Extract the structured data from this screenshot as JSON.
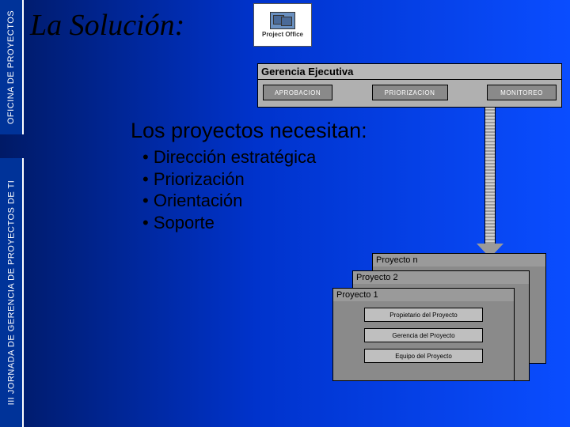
{
  "sidebar": {
    "top": "OFICINA DE PROYECTOS",
    "bottom": "III JORNADA DE GERENCIA DE PROYECTOS DE TI"
  },
  "title": "La Solución:",
  "logo": {
    "line1": "Project Office"
  },
  "exec": {
    "heading": "Gerencia Ejecutiva",
    "items": [
      "APROBACION",
      "PRIORIZACION",
      "MONITOREO"
    ]
  },
  "headline": "Los proyectos necesitan:",
  "bullets": [
    "Dirección estratégica",
    "Priorización",
    "Orientación",
    "Soporte"
  ],
  "projects": {
    "n": "Proyecto n",
    "p2": "Proyecto 2",
    "p1": "Proyecto 1",
    "roles": [
      "Propietario del Proyecto",
      "Gerencia del Proyecto",
      "Equipo del Proyecto"
    ]
  }
}
